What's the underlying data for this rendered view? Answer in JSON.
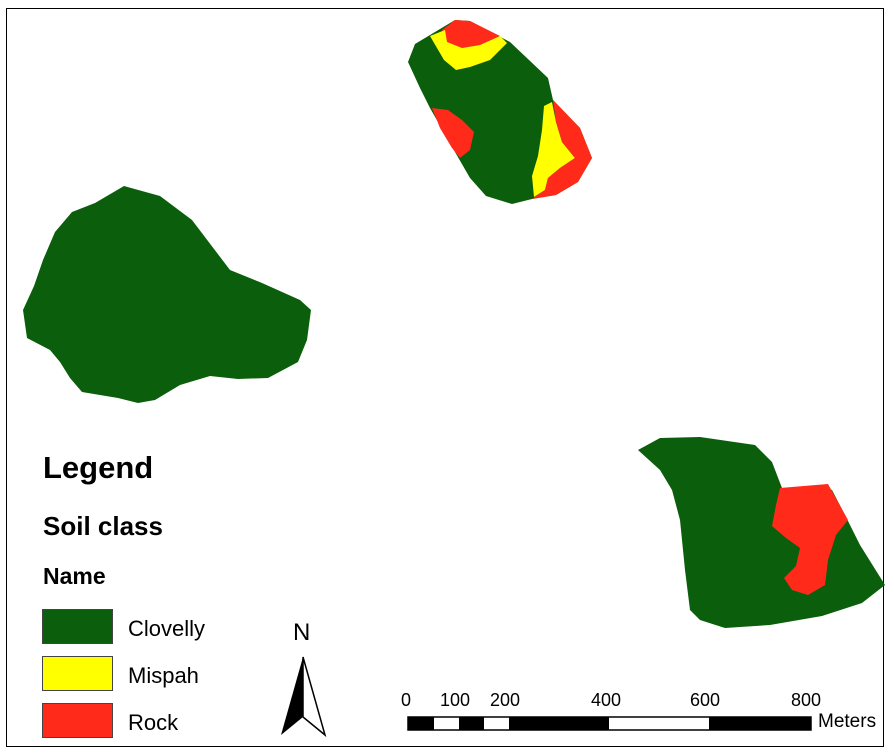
{
  "legend": {
    "title": "Legend",
    "layer": "Soil class",
    "field": "Name",
    "items": [
      {
        "label": "Clovelly",
        "color": "#0b5e0b"
      },
      {
        "label": "Mispah",
        "color": "#ffff00"
      },
      {
        "label": "Rock",
        "color": "#ff2a1a"
      }
    ]
  },
  "north_arrow": {
    "label": "N"
  },
  "scale_bar": {
    "ticks": [
      "0",
      "100",
      "200",
      "400",
      "600",
      "800"
    ],
    "units": "Meters"
  }
}
